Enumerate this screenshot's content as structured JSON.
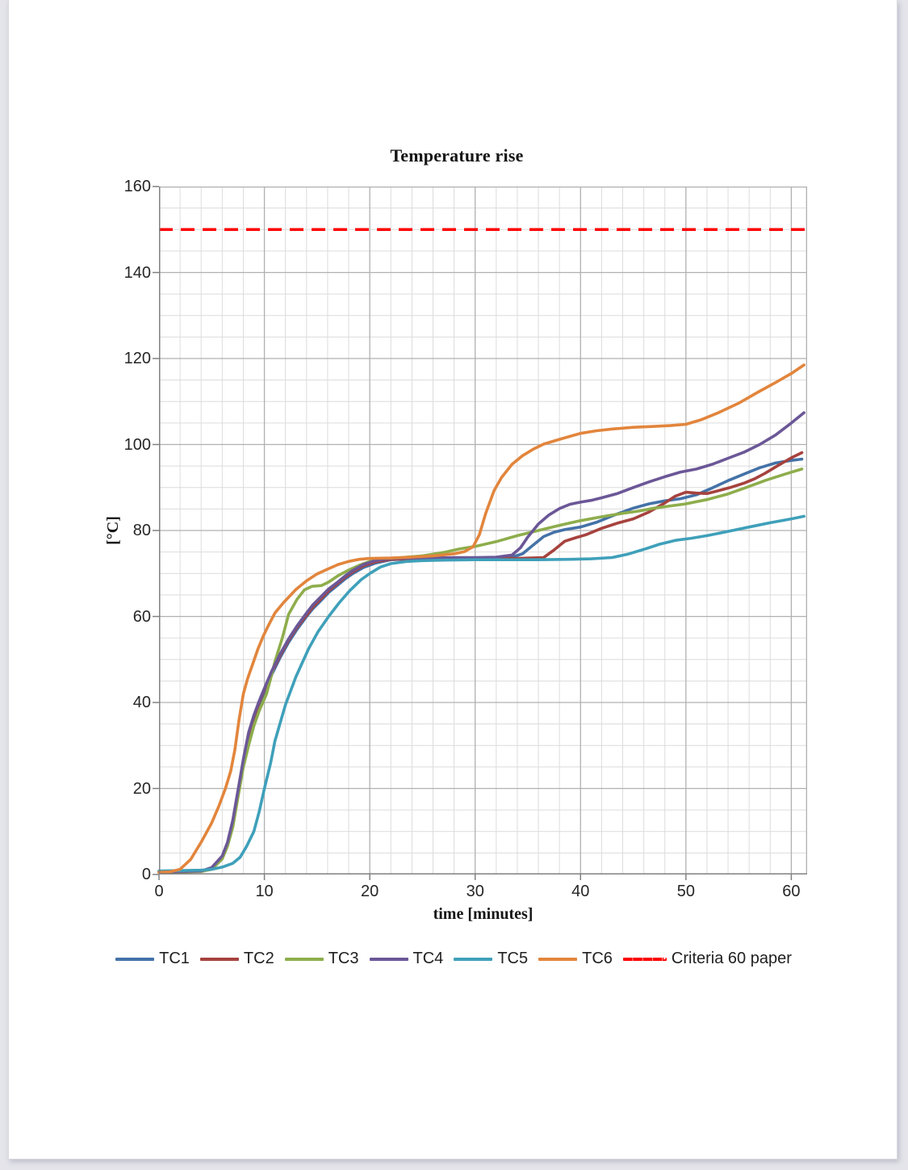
{
  "page": {
    "background": "#e4e4ea",
    "paper": "#ffffff"
  },
  "chart_data": {
    "type": "line",
    "title": "Temperature rise",
    "xlabel": "time [minutes]",
    "ylabel": "[°C]",
    "xlim": [
      0,
      61.5
    ],
    "ylim": [
      0,
      160
    ],
    "xticks": [
      0,
      10,
      20,
      30,
      40,
      50,
      60
    ],
    "yticks": [
      0,
      20,
      40,
      60,
      80,
      100,
      120,
      140,
      160
    ],
    "minor_x_step": 2,
    "minor_y_step": 5,
    "grid": true,
    "legend_position": "bottom",
    "criteria_line": {
      "label": "Criteria 60 paper",
      "value": 150,
      "color": "#fe0000",
      "style": "dashed"
    },
    "series": [
      {
        "name": "TC1",
        "color": "#4472a8",
        "points": [
          [
            0,
            0.6
          ],
          [
            2,
            0.7
          ],
          [
            4,
            0.8
          ],
          [
            5,
            1.5
          ],
          [
            6,
            4
          ],
          [
            6.5,
            7
          ],
          [
            7,
            12
          ],
          [
            7.5,
            19
          ],
          [
            8,
            26
          ],
          [
            8.5,
            32
          ],
          [
            9,
            36
          ],
          [
            9.5,
            39.5
          ],
          [
            10,
            42.5
          ],
          [
            10.7,
            46.5
          ],
          [
            11.5,
            50.5
          ],
          [
            12.3,
            54
          ],
          [
            13.1,
            57
          ],
          [
            14,
            60
          ],
          [
            14.6,
            61.8
          ],
          [
            15.4,
            63.8
          ],
          [
            16.1,
            65.6
          ],
          [
            17,
            67.4
          ],
          [
            17.7,
            68.8
          ],
          [
            18.4,
            70
          ],
          [
            19.4,
            71.4
          ],
          [
            20.5,
            72.4
          ],
          [
            22,
            73.2
          ],
          [
            24,
            73.4
          ],
          [
            26,
            73.5
          ],
          [
            28,
            73.5
          ],
          [
            30,
            73.6
          ],
          [
            32,
            73.6
          ],
          [
            33.5,
            73.8
          ],
          [
            34.5,
            74.6
          ],
          [
            35.5,
            76.6
          ],
          [
            36.5,
            78.6
          ],
          [
            37.5,
            79.6
          ],
          [
            38.5,
            80.2
          ],
          [
            40,
            80.8
          ],
          [
            41.5,
            81.9
          ],
          [
            43,
            83.4
          ],
          [
            45,
            85.2
          ],
          [
            46.5,
            86.2
          ],
          [
            48,
            86.9
          ],
          [
            49.5,
            87.4
          ],
          [
            51,
            88.3
          ],
          [
            52.5,
            89.9
          ],
          [
            54,
            91.6
          ],
          [
            55.5,
            93.1
          ],
          [
            57,
            94.6
          ],
          [
            58.5,
            95.7
          ],
          [
            60,
            96.3
          ],
          [
            61,
            96.6
          ]
        ]
      },
      {
        "name": "TC2",
        "color": "#a6423e",
        "points": [
          [
            0,
            0.6
          ],
          [
            2,
            0.7
          ],
          [
            4,
            0.8
          ],
          [
            5,
            1.5
          ],
          [
            6,
            4
          ],
          [
            6.5,
            7
          ],
          [
            7,
            12
          ],
          [
            7.5,
            19
          ],
          [
            8,
            26.5
          ],
          [
            8.5,
            32.5
          ],
          [
            9,
            36.5
          ],
          [
            9.5,
            40
          ],
          [
            10,
            43
          ],
          [
            10.7,
            47
          ],
          [
            11.5,
            51
          ],
          [
            12.3,
            54.5
          ],
          [
            13.1,
            57.5
          ],
          [
            14,
            60.3
          ],
          [
            14.6,
            62.2
          ],
          [
            15.4,
            64.2
          ],
          [
            16.1,
            66
          ],
          [
            17,
            67.8
          ],
          [
            17.7,
            69.2
          ],
          [
            18.4,
            70.4
          ],
          [
            19.4,
            71.8
          ],
          [
            20.5,
            72.7
          ],
          [
            22,
            73.3
          ],
          [
            24,
            73.4
          ],
          [
            26,
            73.5
          ],
          [
            28,
            73.5
          ],
          [
            31,
            73.5
          ],
          [
            34,
            73.5
          ],
          [
            36.5,
            73.7
          ],
          [
            37.5,
            75.5
          ],
          [
            38.5,
            77.5
          ],
          [
            39.5,
            78.3
          ],
          [
            40.5,
            79
          ],
          [
            42,
            80.5
          ],
          [
            43.5,
            81.7
          ],
          [
            45,
            82.7
          ],
          [
            46.5,
            84.3
          ],
          [
            48,
            86.4
          ],
          [
            49,
            88
          ],
          [
            50,
            88.9
          ],
          [
            51,
            88.7
          ],
          [
            52,
            88.6
          ],
          [
            53,
            89.2
          ],
          [
            54.2,
            90
          ],
          [
            55.5,
            91
          ],
          [
            56.5,
            92
          ],
          [
            57.5,
            93.3
          ],
          [
            58.8,
            95.2
          ],
          [
            60,
            96.9
          ],
          [
            61,
            98.1
          ]
        ]
      },
      {
        "name": "TC3",
        "color": "#8ead4c",
        "points": [
          [
            0,
            0.5
          ],
          [
            2,
            0.6
          ],
          [
            4,
            0.7
          ],
          [
            5,
            1.2
          ],
          [
            6,
            3.6
          ],
          [
            6.5,
            6.6
          ],
          [
            7,
            11
          ],
          [
            7.5,
            18
          ],
          [
            8,
            25
          ],
          [
            8.5,
            30
          ],
          [
            9,
            34.5
          ],
          [
            9.5,
            38
          ],
          [
            10.2,
            42
          ],
          [
            10.7,
            46.5
          ],
          [
            11,
            49.5
          ],
          [
            11.7,
            55
          ],
          [
            12.3,
            60.5
          ],
          [
            13.1,
            64
          ],
          [
            13.8,
            66.2
          ],
          [
            14.5,
            67
          ],
          [
            15.4,
            67.2
          ],
          [
            16.1,
            68
          ],
          [
            17,
            69.5
          ],
          [
            18,
            70.8
          ],
          [
            19,
            71.9
          ],
          [
            20,
            72.8
          ],
          [
            21.5,
            73.4
          ],
          [
            23,
            73.7
          ],
          [
            25,
            74.1
          ],
          [
            27,
            74.9
          ],
          [
            28.5,
            75.7
          ],
          [
            30,
            76.3
          ],
          [
            32,
            77.4
          ],
          [
            34,
            78.8
          ],
          [
            36,
            80
          ],
          [
            38,
            81.2
          ],
          [
            40,
            82.3
          ],
          [
            42,
            83.2
          ],
          [
            44,
            84
          ],
          [
            45.5,
            84.5
          ],
          [
            47,
            85.2
          ],
          [
            48.5,
            85.7
          ],
          [
            50,
            86.2
          ],
          [
            52,
            87.2
          ],
          [
            54,
            88.5
          ],
          [
            55.7,
            90
          ],
          [
            57.6,
            91.7
          ],
          [
            59.4,
            93.1
          ],
          [
            61,
            94.3
          ]
        ]
      },
      {
        "name": "TC4",
        "color": "#6b5797",
        "points": [
          [
            0,
            0.6
          ],
          [
            2,
            0.7
          ],
          [
            4,
            0.8
          ],
          [
            5,
            1.6
          ],
          [
            6,
            4.3
          ],
          [
            6.5,
            7.5
          ],
          [
            7,
            12.6
          ],
          [
            7.5,
            19.6
          ],
          [
            8,
            26.8
          ],
          [
            8.5,
            33
          ],
          [
            9,
            37
          ],
          [
            9.5,
            40.3
          ],
          [
            10,
            43.3
          ],
          [
            10.7,
            47.3
          ],
          [
            11.5,
            51.3
          ],
          [
            12.3,
            54.8
          ],
          [
            13.1,
            57.8
          ],
          [
            14,
            60.8
          ],
          [
            14.6,
            62.7
          ],
          [
            15.4,
            64.7
          ],
          [
            16.1,
            66.4
          ],
          [
            17,
            68.1
          ],
          [
            17.7,
            69.5
          ],
          [
            18.4,
            70.7
          ],
          [
            19.4,
            72.1
          ],
          [
            20.5,
            73
          ],
          [
            22,
            73.5
          ],
          [
            24,
            73.6
          ],
          [
            26,
            73.6
          ],
          [
            28,
            73.7
          ],
          [
            30,
            73.7
          ],
          [
            32,
            73.8
          ],
          [
            33.5,
            74.3
          ],
          [
            34.3,
            76
          ],
          [
            35,
            78.5
          ],
          [
            36,
            81.5
          ],
          [
            37,
            83.6
          ],
          [
            38,
            85.1
          ],
          [
            39,
            86.1
          ],
          [
            40,
            86.6
          ],
          [
            41,
            87
          ],
          [
            42,
            87.6
          ],
          [
            43.5,
            88.6
          ],
          [
            45,
            90
          ],
          [
            46.5,
            91.3
          ],
          [
            48,
            92.5
          ],
          [
            49.5,
            93.6
          ],
          [
            51,
            94.3
          ],
          [
            52.5,
            95.4
          ],
          [
            54,
            96.8
          ],
          [
            55.5,
            98.2
          ],
          [
            57,
            100
          ],
          [
            58.5,
            102.2
          ],
          [
            60,
            105
          ],
          [
            61.2,
            107.4
          ]
        ]
      },
      {
        "name": "TC5",
        "color": "#3fa0ba",
        "points": [
          [
            0,
            0.8
          ],
          [
            2,
            0.9
          ],
          [
            4,
            1
          ],
          [
            5,
            1.2
          ],
          [
            6,
            1.7
          ],
          [
            7,
            2.6
          ],
          [
            7.7,
            4
          ],
          [
            8.3,
            6.5
          ],
          [
            9,
            10
          ],
          [
            9.5,
            14.5
          ],
          [
            10,
            20
          ],
          [
            10.6,
            26
          ],
          [
            11,
            31
          ],
          [
            12,
            39.5
          ],
          [
            13,
            46
          ],
          [
            14.2,
            52.5
          ],
          [
            15.1,
            56.5
          ],
          [
            16.1,
            60
          ],
          [
            17.1,
            63.2
          ],
          [
            18.1,
            66
          ],
          [
            19.2,
            68.6
          ],
          [
            20,
            70
          ],
          [
            21,
            71.5
          ],
          [
            22,
            72.3
          ],
          [
            23.5,
            72.8
          ],
          [
            25,
            73
          ],
          [
            27,
            73.1
          ],
          [
            30,
            73.2
          ],
          [
            33,
            73.2
          ],
          [
            36,
            73.2
          ],
          [
            39,
            73.3
          ],
          [
            41,
            73.4
          ],
          [
            43,
            73.7
          ],
          [
            44.5,
            74.5
          ],
          [
            46,
            75.6
          ],
          [
            47.5,
            76.8
          ],
          [
            49,
            77.7
          ],
          [
            50.5,
            78.2
          ],
          [
            52,
            78.8
          ],
          [
            54,
            79.8
          ],
          [
            56,
            80.8
          ],
          [
            58,
            81.8
          ],
          [
            60,
            82.7
          ],
          [
            61.2,
            83.3
          ]
        ]
      },
      {
        "name": "TC6",
        "color": "#e2853c",
        "points": [
          [
            0,
            0.5
          ],
          [
            1,
            0.6
          ],
          [
            2,
            1.2
          ],
          [
            3,
            3.5
          ],
          [
            4,
            7.5
          ],
          [
            5,
            12
          ],
          [
            5.7,
            16
          ],
          [
            6.3,
            20
          ],
          [
            6.8,
            24
          ],
          [
            7.2,
            29
          ],
          [
            7.6,
            36
          ],
          [
            8,
            42
          ],
          [
            8.4,
            45.5
          ],
          [
            8.9,
            49
          ],
          [
            9.4,
            52.5
          ],
          [
            9.9,
            55.5
          ],
          [
            10.4,
            58
          ],
          [
            11,
            60.8
          ],
          [
            11.8,
            63.2
          ],
          [
            13,
            66.3
          ],
          [
            14,
            68.3
          ],
          [
            15,
            69.9
          ],
          [
            16,
            71
          ],
          [
            17,
            72.1
          ],
          [
            18,
            72.8
          ],
          [
            19,
            73.3
          ],
          [
            20,
            73.5
          ],
          [
            22,
            73.6
          ],
          [
            24,
            73.8
          ],
          [
            26,
            74.1
          ],
          [
            28,
            74.6
          ],
          [
            29,
            75.1
          ],
          [
            29.8,
            76.2
          ],
          [
            30.4,
            79
          ],
          [
            31,
            84
          ],
          [
            31.8,
            89.3
          ],
          [
            32.5,
            92.3
          ],
          [
            33.5,
            95.4
          ],
          [
            34.5,
            97.4
          ],
          [
            35.5,
            98.9
          ],
          [
            36.5,
            100.1
          ],
          [
            38,
            101.2
          ],
          [
            39,
            101.9
          ],
          [
            40,
            102.6
          ],
          [
            41.5,
            103.2
          ],
          [
            43,
            103.6
          ],
          [
            45,
            104
          ],
          [
            47,
            104.2
          ],
          [
            48.5,
            104.4
          ],
          [
            50,
            104.7
          ],
          [
            51.5,
            105.8
          ],
          [
            53,
            107.3
          ],
          [
            55,
            109.6
          ],
          [
            57,
            112.4
          ],
          [
            58.5,
            114.4
          ],
          [
            60,
            116.5
          ],
          [
            61.2,
            118.5
          ]
        ]
      }
    ],
    "colors": {
      "grid_minor": "#dcdcdc",
      "grid_major": "#b0b0b0",
      "axis": "#808080",
      "text": "#262626"
    }
  }
}
